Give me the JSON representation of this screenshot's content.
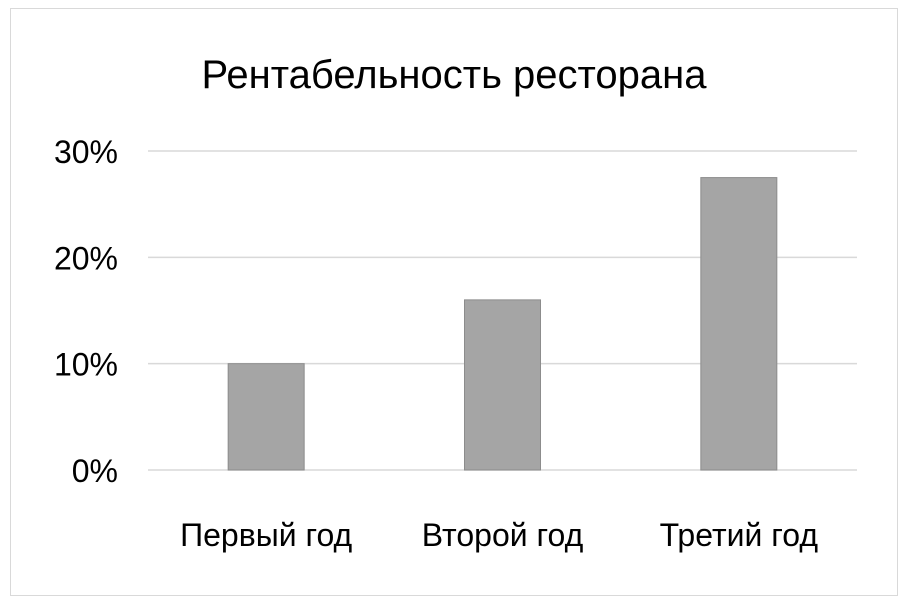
{
  "chart_data": {
    "type": "bar",
    "title": "Рентабельность ресторана",
    "categories": [
      "Первый год",
      "Второй год",
      "Третий год"
    ],
    "values": [
      10,
      16,
      27.5
    ],
    "ylim": [
      0,
      30
    ],
    "yticks": [
      0,
      10,
      20,
      30
    ],
    "ytick_labels": [
      "0%",
      "10%",
      "20%",
      "30%"
    ],
    "grid": true,
    "legend": "none",
    "bar_color": "#a5a5a5"
  }
}
